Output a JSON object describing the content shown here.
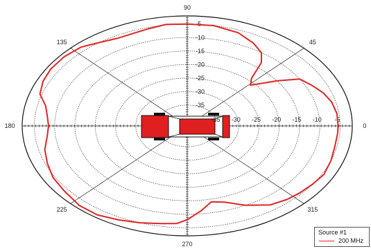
{
  "chart_data": {
    "type": "polar-line",
    "title": "",
    "angle_labels": [
      "0",
      "45",
      "90",
      "135",
      "180",
      "225",
      "270",
      "315"
    ],
    "angle_values": [
      0,
      45,
      90,
      135,
      180,
      225,
      270,
      315
    ],
    "radial_ticks": [
      -35,
      -30,
      -25,
      -20,
      -15,
      -10,
      -5
    ],
    "radial_tick_labels": [
      "-35",
      "-30",
      "-25",
      "-20",
      "-15",
      "-10",
      "-5"
    ],
    "radial_range": [
      -37,
      -2
    ],
    "grid": true,
    "legend": {
      "title": "Source #1",
      "placement": "bottom-right"
    },
    "series": [
      {
        "name": "200 MHz",
        "color": "#e02424",
        "points": [
          [
            0,
            -5.5
          ],
          [
            7,
            -5.5
          ],
          [
            14,
            -6
          ],
          [
            20,
            -7
          ],
          [
            26,
            -8.5
          ],
          [
            32,
            -10
          ],
          [
            37,
            -15
          ],
          [
            40,
            -18
          ],
          [
            44,
            -21
          ],
          [
            48,
            -19
          ],
          [
            52,
            -13
          ],
          [
            56,
            -10
          ],
          [
            62,
            -8
          ],
          [
            70,
            -6
          ],
          [
            80,
            -5
          ],
          [
            90,
            -5
          ],
          [
            98,
            -4.8
          ],
          [
            105,
            -5.5
          ],
          [
            112,
            -6
          ],
          [
            118,
            -6
          ],
          [
            125,
            -5
          ],
          [
            132,
            -3.5
          ],
          [
            140,
            -3
          ],
          [
            148,
            -3
          ],
          [
            155,
            -3.5
          ],
          [
            162,
            -4.5
          ],
          [
            168,
            -7
          ],
          [
            174,
            -8
          ],
          [
            180,
            -8.5
          ],
          [
            186,
            -8
          ],
          [
            194,
            -6.5
          ],
          [
            202,
            -5.5
          ],
          [
            210,
            -4.5
          ],
          [
            218,
            -4
          ],
          [
            228,
            -3
          ],
          [
            236,
            -3
          ],
          [
            244,
            -4
          ],
          [
            252,
            -5
          ],
          [
            260,
            -6
          ],
          [
            266,
            -6.5
          ],
          [
            270,
            -8
          ],
          [
            276,
            -11
          ],
          [
            282,
            -14
          ],
          [
            288,
            -13
          ],
          [
            296,
            -10
          ],
          [
            305,
            -7
          ],
          [
            312,
            -6
          ],
          [
            318,
            -5.5
          ],
          [
            325,
            -5
          ],
          [
            332,
            -4.5
          ],
          [
            340,
            -5
          ],
          [
            348,
            -5.5
          ],
          [
            356,
            -5.5
          ]
        ]
      }
    ]
  },
  "legend": {
    "title": "Source #1",
    "series_name": "200 MHz"
  }
}
